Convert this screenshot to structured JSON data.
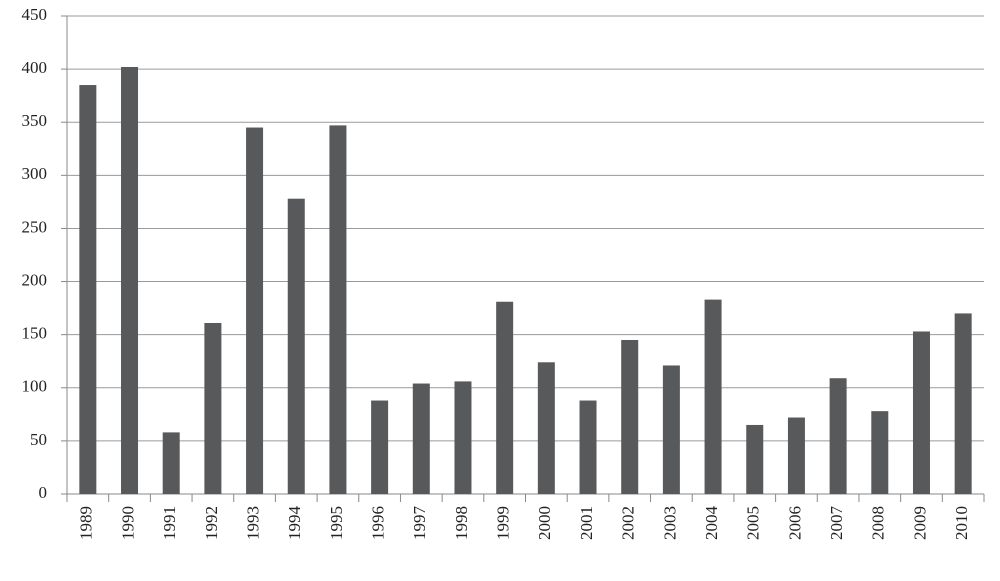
{
  "chart_data": {
    "type": "bar",
    "categories": [
      "1989",
      "1990",
      "1991",
      "1992",
      "1993",
      "1994",
      "1995",
      "1996",
      "1997",
      "1998",
      "1999",
      "2000",
      "2001",
      "2002",
      "2003",
      "2004",
      "2005",
      "2006",
      "2007",
      "2008",
      "2009",
      "2010"
    ],
    "values": [
      385,
      402,
      58,
      161,
      345,
      278,
      347,
      88,
      104,
      106,
      181,
      124,
      88,
      145,
      121,
      183,
      65,
      72,
      109,
      78,
      153,
      170
    ],
    "color": "#58595b",
    "ylim": [
      0,
      450
    ],
    "yticks": [
      0,
      50,
      100,
      150,
      200,
      250,
      300,
      350,
      400,
      450
    ],
    "grid": true
  }
}
